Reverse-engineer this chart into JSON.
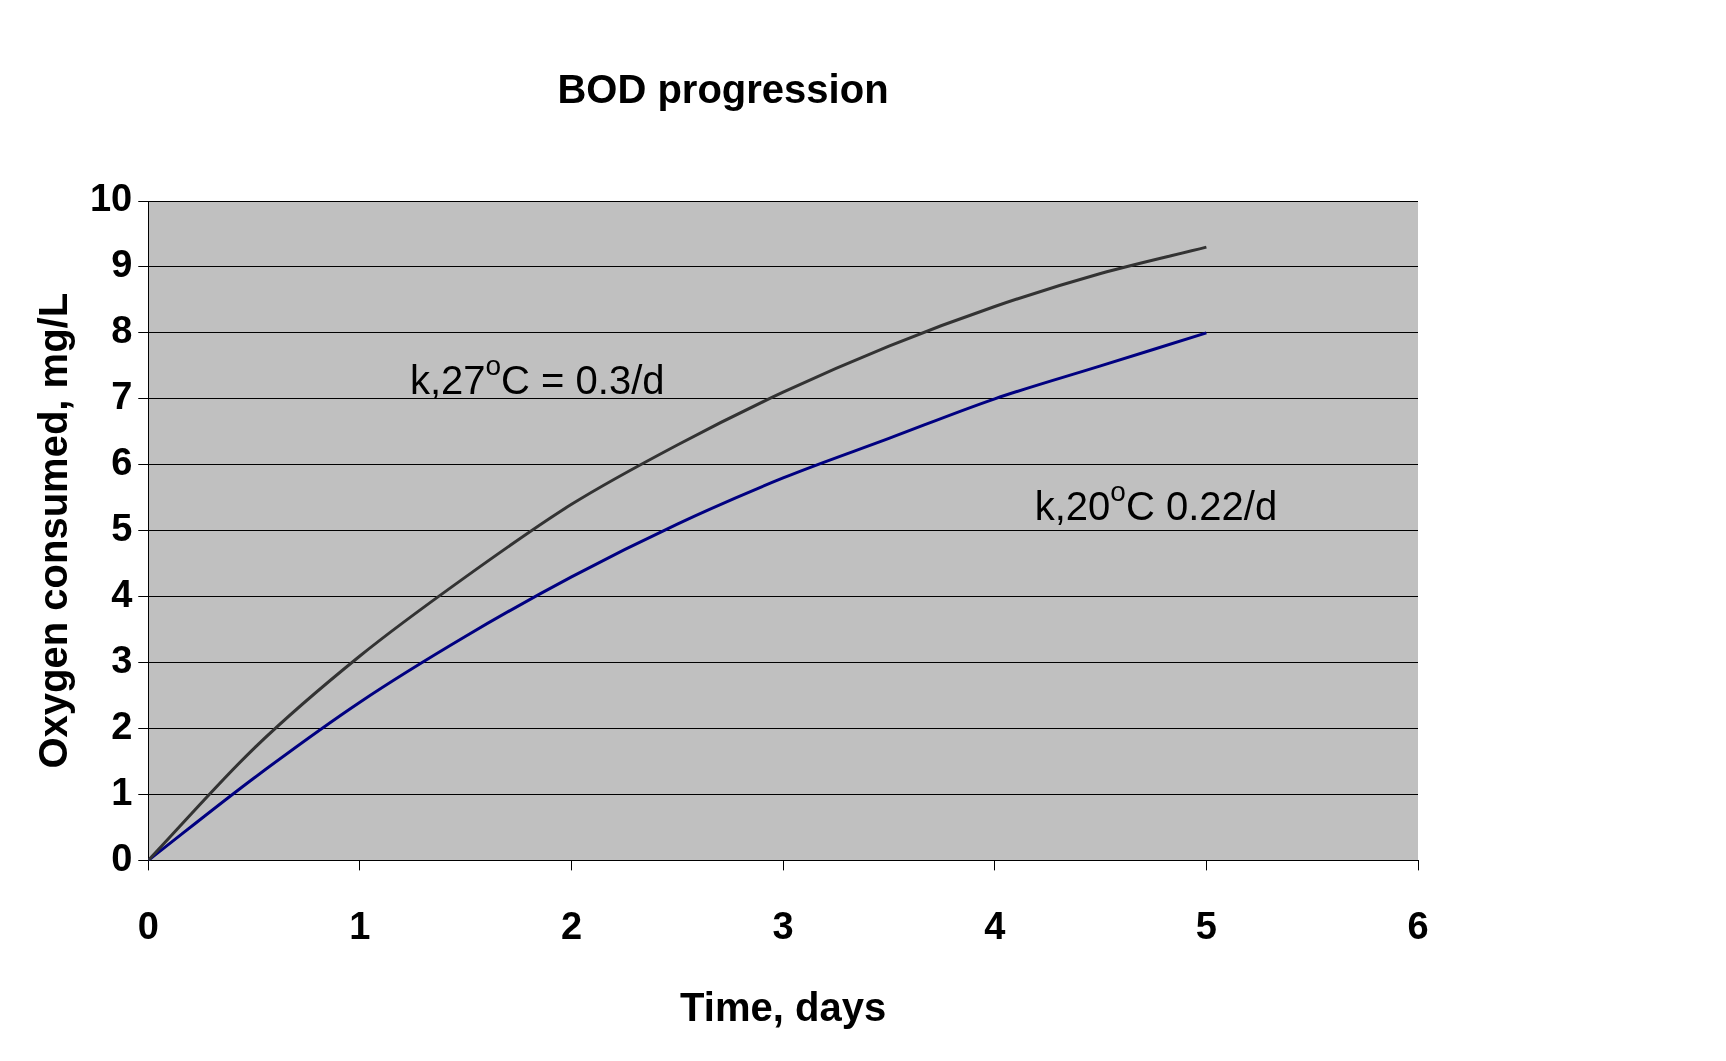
{
  "chart_data": {
    "type": "line",
    "title": "BOD progression",
    "xlabel": "Time, days",
    "ylabel": "Oxygen consumed, mg/L",
    "x": [
      0,
      0.5,
      1,
      1.5,
      2,
      2.5,
      3,
      3.5,
      4,
      4.5,
      5
    ],
    "series": [
      {
        "name": "k,27$^{o}$C = 0.3/d",
        "color": "#333333",
        "values": [
          0,
          1.7,
          3.1,
          4.3,
          5.4,
          6.3,
          7.1,
          7.8,
          8.4,
          8.9,
          9.3
        ]
      },
      {
        "name": "k,20$^{o}$C 0.22/d",
        "color": "#000080",
        "values": [
          0,
          1.25,
          2.4,
          3.4,
          4.3,
          5.1,
          5.8,
          6.4,
          7.0,
          7.5,
          8.0
        ]
      }
    ],
    "xlim": [
      0,
      6
    ],
    "xticks": [
      0,
      1,
      2,
      3,
      4,
      5,
      6
    ],
    "ylim": [
      0,
      10
    ],
    "yticks": [
      0,
      1,
      2,
      3,
      4,
      5,
      6,
      7,
      8,
      9,
      10
    ],
    "grid": "y",
    "legend": false,
    "marker": "none",
    "line_style": "solid"
  }
}
